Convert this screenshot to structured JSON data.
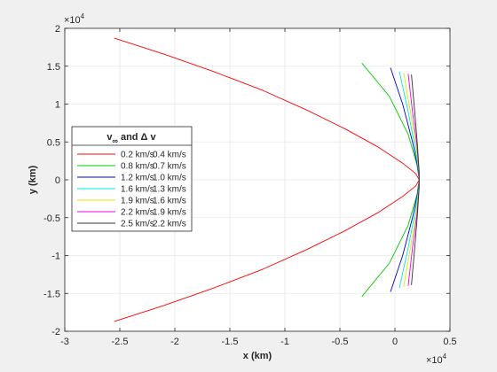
{
  "chart_data": {
    "type": "line",
    "xlabel": "x (km)",
    "ylabel": "y (km)",
    "x_exponent_label": "×10",
    "x_exponent_power": "4",
    "y_exponent_label": "×10",
    "y_exponent_power": "4",
    "xlim": [
      -3,
      0.5
    ],
    "ylim": [
      -2,
      2
    ],
    "xticks": [
      -3,
      -2.5,
      -2,
      -1.5,
      -1,
      -0.5,
      0,
      0.5
    ],
    "xtick_labels": [
      "-3",
      "-2.5",
      "-2",
      "-1.5",
      "-1",
      "-0.5",
      "0",
      "0.5"
    ],
    "yticks": [
      -2,
      -1.5,
      -1,
      -0.5,
      0,
      0.5,
      1,
      1.5,
      2
    ],
    "ytick_labels": [
      "-2",
      "-1.5",
      "-1",
      "-0.5",
      "0",
      "0.5",
      "1",
      "1.5",
      "2"
    ],
    "grid": true,
    "legend": {
      "placement": "left",
      "title_main": "v",
      "title_sub": "∞",
      "title_rest": " and Δ v",
      "entries": [
        {
          "v_inf": "0.2 km/s",
          "dv": "0.4 km/s",
          "color": "#ff0000"
        },
        {
          "v_inf": "0.8 km/s",
          "dv": "0.7 km/s",
          "color": "#00cc00"
        },
        {
          "v_inf": "1.2 km/s",
          "dv": "1.0 km/s",
          "color": "#0000cc"
        },
        {
          "v_inf": "1.6 km/s",
          "dv": "1.3 km/s",
          "color": "#00e5e5"
        },
        {
          "v_inf": "1.9 km/s",
          "dv": "1.6 km/s",
          "color": "#e5e500"
        },
        {
          "v_inf": "2.2 km/s",
          "dv": "1.9 km/s",
          "color": "#ee00ee"
        },
        {
          "v_inf": "2.5 km/s",
          "dv": "2.2 km/s",
          "color": "#333333"
        }
      ]
    },
    "series": [
      {
        "color": "#ff0000",
        "points": [
          [
            -2.55,
            1.87
          ],
          [
            -2.1,
            1.66
          ],
          [
            -1.65,
            1.43
          ],
          [
            -1.2,
            1.18
          ],
          [
            -0.8,
            0.92
          ],
          [
            -0.45,
            0.67
          ],
          [
            -0.15,
            0.43
          ],
          [
            0.07,
            0.22
          ],
          [
            0.19,
            0.08
          ],
          [
            0.22,
            0
          ],
          [
            0.19,
            -0.08
          ],
          [
            0.07,
            -0.22
          ],
          [
            -0.15,
            -0.43
          ],
          [
            -0.45,
            -0.67
          ],
          [
            -0.8,
            -0.92
          ],
          [
            -1.2,
            -1.18
          ],
          [
            -1.65,
            -1.43
          ],
          [
            -2.1,
            -1.66
          ],
          [
            -2.55,
            -1.87
          ]
        ]
      },
      {
        "color": "#00cc00",
        "points": [
          [
            -0.3,
            1.54
          ],
          [
            -0.05,
            1.1
          ],
          [
            0.12,
            0.6
          ],
          [
            0.2,
            0.2
          ],
          [
            0.22,
            0
          ],
          [
            0.2,
            -0.2
          ],
          [
            0.12,
            -0.6
          ],
          [
            -0.05,
            -1.1
          ],
          [
            -0.3,
            -1.54
          ]
        ]
      },
      {
        "color": "#0000cc",
        "points": [
          [
            -0.04,
            1.48
          ],
          [
            0.07,
            1.0
          ],
          [
            0.16,
            0.5
          ],
          [
            0.21,
            0.15
          ],
          [
            0.22,
            0
          ],
          [
            0.21,
            -0.15
          ],
          [
            0.16,
            -0.5
          ],
          [
            0.07,
            -1.0
          ],
          [
            -0.04,
            -1.48
          ]
        ]
      },
      {
        "color": "#00e5e5",
        "points": [
          [
            0.04,
            1.43
          ],
          [
            0.12,
            0.9
          ],
          [
            0.18,
            0.45
          ],
          [
            0.215,
            0.12
          ],
          [
            0.22,
            0
          ],
          [
            0.215,
            -0.12
          ],
          [
            0.18,
            -0.45
          ],
          [
            0.12,
            -0.9
          ],
          [
            0.04,
            -1.43
          ]
        ]
      },
      {
        "color": "#e5e500",
        "points": [
          [
            0.08,
            1.41
          ],
          [
            0.14,
            0.9
          ],
          [
            0.19,
            0.45
          ],
          [
            0.218,
            0.12
          ],
          [
            0.22,
            0
          ],
          [
            0.218,
            -0.12
          ],
          [
            0.19,
            -0.45
          ],
          [
            0.14,
            -0.9
          ],
          [
            0.08,
            -1.41
          ]
        ]
      },
      {
        "color": "#ee00ee",
        "points": [
          [
            0.12,
            1.4
          ],
          [
            0.16,
            0.9
          ],
          [
            0.2,
            0.45
          ],
          [
            0.219,
            0.1
          ],
          [
            0.22,
            0
          ],
          [
            0.219,
            -0.1
          ],
          [
            0.2,
            -0.45
          ],
          [
            0.16,
            -0.9
          ],
          [
            0.12,
            -1.4
          ]
        ]
      },
      {
        "color": "#333333",
        "points": [
          [
            0.15,
            1.39
          ],
          [
            0.18,
            0.9
          ],
          [
            0.205,
            0.45
          ],
          [
            0.22,
            0.1
          ],
          [
            0.22,
            0
          ],
          [
            0.22,
            -0.1
          ],
          [
            0.205,
            -0.45
          ],
          [
            0.18,
            -0.9
          ],
          [
            0.15,
            -1.39
          ]
        ]
      }
    ]
  }
}
